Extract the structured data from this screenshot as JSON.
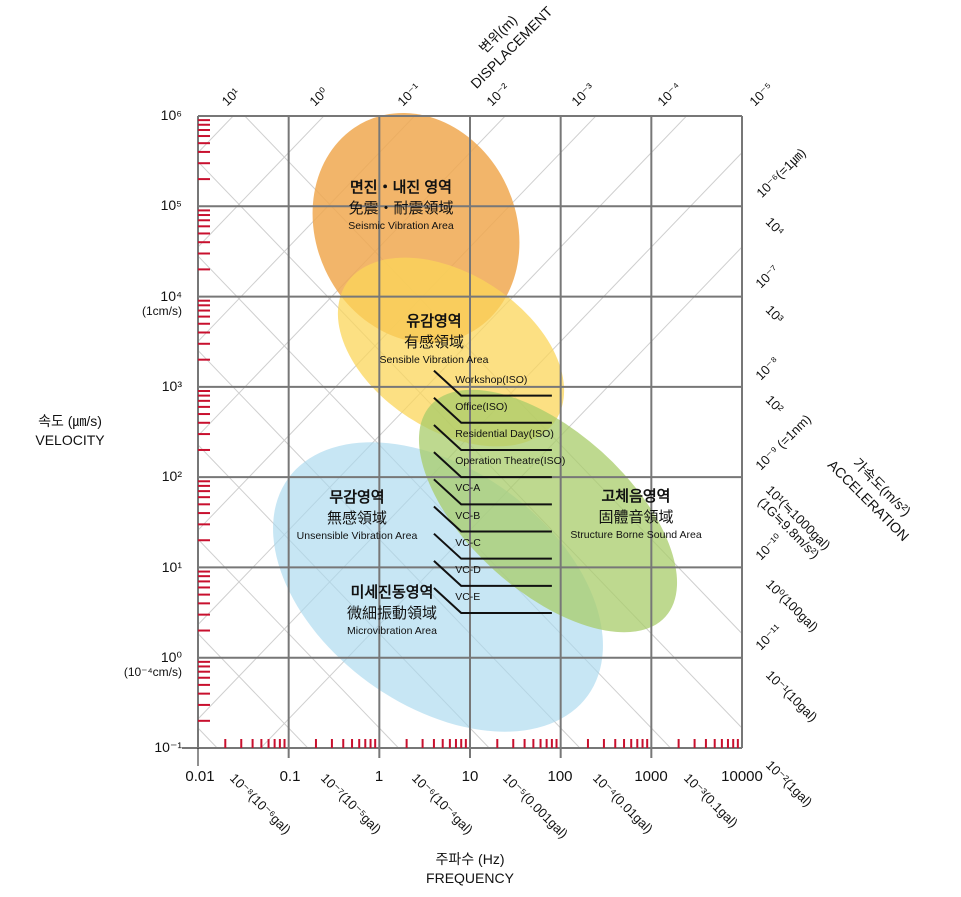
{
  "colors": {
    "grid": "#777777",
    "diagonal": "#cfcfcf",
    "ticks": "#c8102e",
    "seismic": "#f0a850",
    "sensible": "#fbd65a",
    "structure": "#a8cc6a",
    "unsensible": "#a9d8ee"
  },
  "velocity_axis": {
    "title_ko": "속도 (㎛/s)",
    "title_en": "VELOCITY",
    "ticks": [
      "10⁶",
      "10⁵",
      "10⁴",
      "10³",
      "10²",
      "10¹",
      "10⁰",
      "10⁻¹"
    ],
    "notes": {
      "1e4": "(1cm/s)",
      "1e0": "(10⁻⁴cm/s)"
    }
  },
  "frequency_axis": {
    "title_ko": "주파수 (Hz)",
    "title_en": "FREQUENCY",
    "ticks": [
      "0.01",
      "0.1",
      "1",
      "10",
      "100",
      "1000",
      "10000"
    ]
  },
  "displacement_axis": {
    "title_ko": "변위(m)",
    "title_en": "DISPLACEMENT",
    "top_ticks": [
      "10¹",
      "10⁰",
      "10⁻¹",
      "10⁻²",
      "10⁻³",
      "10⁻⁴",
      "10⁻⁵"
    ],
    "right_ticks": [
      "10⁻⁶(=1㎛)",
      "10⁻⁷",
      "10⁻⁸",
      "10⁻⁹ (=1nm)",
      "10⁻¹⁰",
      "10⁻¹¹"
    ]
  },
  "acceleration_axis": {
    "title_ko": "가속도(m/s²)",
    "title_en": "ACCELERATION",
    "bottom_ticks": [
      "10⁻⁸(10⁻⁶gal)",
      "10⁻⁷(10⁻⁵gal)",
      "10⁻⁶(10⁻⁴gal)",
      "10⁻⁵(0.001gal)",
      "10⁻⁴(0.01gal)",
      "10⁻³(0.1gal)",
      "10⁻²(1gal)"
    ],
    "right_ticks": [
      "10⁻¹(10gal)",
      "10⁰(100gal)",
      "10¹(≒1000gal)",
      "(1G≒9.8m/s²)",
      "10²",
      "10³",
      "10⁴"
    ]
  },
  "regions": [
    {
      "ko": "면진・내진 영역",
      "cj": "免震・耐震領域",
      "en": "Seismic Vibration Area"
    },
    {
      "ko": "유감영역",
      "cj": "有感領域",
      "en": "Sensible Vibration Area"
    },
    {
      "ko": "무감영역",
      "cj": "無感領域",
      "en": "Unsensible Vibration Area"
    },
    {
      "ko": "미세진동영역",
      "cj": "微細振動領域",
      "en": "Microvibration Area"
    },
    {
      "ko": "고체음영역",
      "cj": "固體音領域",
      "en": "Structure Borne Sound Area"
    }
  ],
  "chart_data": {
    "type": "line",
    "xlabel": "주파수 (Hz) FREQUENCY",
    "ylabel": "속도 (㎛/s) VELOCITY",
    "xscale": "log",
    "yscale": "log",
    "xlim": [
      0.01,
      10000
    ],
    "ylim": [
      0.1,
      1000000
    ],
    "grid": true,
    "series": [
      {
        "name": "Workshop(ISO)",
        "velocity": 800
      },
      {
        "name": "Office(ISO)",
        "velocity": 400
      },
      {
        "name": "Residential Day(ISO)",
        "velocity": 200
      },
      {
        "name": "Operation Theatre(ISO)",
        "velocity": 100
      },
      {
        "name": "VC-A",
        "velocity": 50
      },
      {
        "name": "VC-B",
        "velocity": 25
      },
      {
        "name": "VC-C",
        "velocity": 12.5
      },
      {
        "name": "VC-D",
        "velocity": 6.25
      },
      {
        "name": "VC-E",
        "velocity": 3.125
      }
    ],
    "criteria_frequency_range_hz": [
      8,
      80
    ]
  }
}
